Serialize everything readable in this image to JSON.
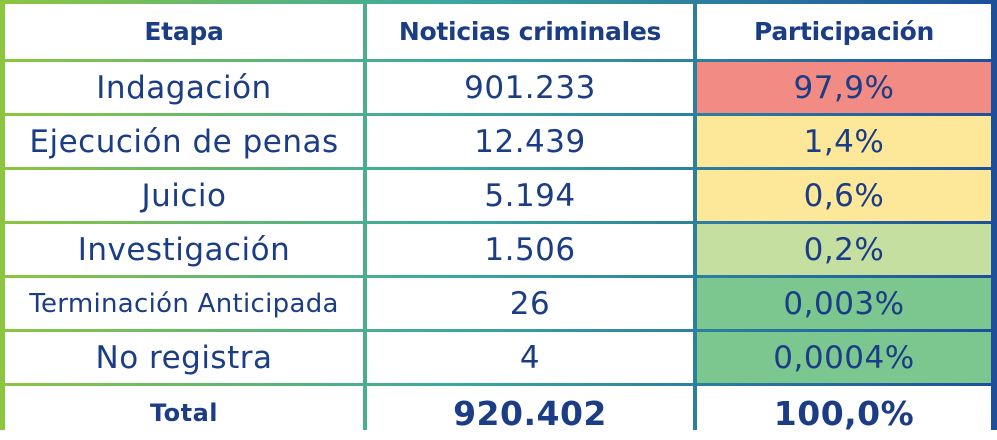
{
  "chart_data": {
    "type": "table",
    "columns": [
      "Etapa",
      "Noticias criminales",
      "Participación"
    ],
    "rows": [
      {
        "etapa": "Indagación",
        "noticias": "901.233",
        "participacion": "97,9%",
        "color": "#f28b84"
      },
      {
        "etapa": "Ejecución de penas",
        "noticias": "12.439",
        "participacion": "1,4%",
        "color": "#fde89a"
      },
      {
        "etapa": "Juicio",
        "noticias": "5.194",
        "participacion": "0,6%",
        "color": "#fde89a"
      },
      {
        "etapa": "Investigación",
        "noticias": "1.506",
        "participacion": "0,2%",
        "color": "#c4dfa0"
      },
      {
        "etapa": "Terminación Anticipada",
        "noticias": "26",
        "participacion": "0,003%",
        "color": "#7cc690"
      },
      {
        "etapa": "No registra",
        "noticias": "4",
        "participacion": "0,0004%",
        "color": "#7cc690"
      }
    ],
    "total": {
      "label": "Total",
      "noticias": "920.402",
      "participacion": "100,0%"
    }
  }
}
